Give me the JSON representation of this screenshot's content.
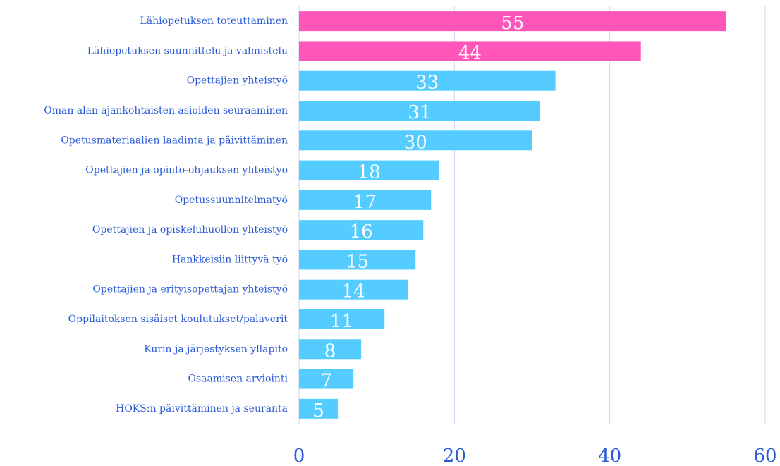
{
  "chart_data": {
    "type": "barh",
    "categories": [
      "Lähiopetuksen toteuttaminen",
      "Lähiopetuksen suunnittelu ja valmistelu",
      "Opettajien yhteistyö",
      "Oman alan ajankohtaisten asioiden seuraaminen",
      "Opetusmateriaalien laadinta ja päivittäminen",
      "Opettajien ja opinto-ohjauksen yhteistyö",
      "Opetussuunnitelmatyö",
      "Opettajien ja opiskeluhuollon yhteistyö",
      "Hankkeisiin liittyvä työ",
      "Opettajien ja erityisopettajan yhteistyö",
      "Oppilaitoksen sisäiset koulutukset/palaverit",
      "Kurin ja järjestyksen ylläpito",
      "Osaamisen arviointi",
      "HOKS:n päivittäminen ja seuranta"
    ],
    "values": [
      55,
      44,
      33,
      31,
      30,
      18,
      17,
      16,
      15,
      14,
      11,
      8,
      7,
      5
    ],
    "colors": [
      "#ff57b9",
      "#ff57b9",
      "#55ccff",
      "#55ccff",
      "#55ccff",
      "#55ccff",
      "#55ccff",
      "#55ccff",
      "#55ccff",
      "#55ccff",
      "#55ccff",
      "#55ccff",
      "#55ccff",
      "#55ccff"
    ],
    "xlim": [
      0,
      60
    ],
    "xticks": [
      0,
      20,
      40,
      60
    ],
    "grid": true
  }
}
